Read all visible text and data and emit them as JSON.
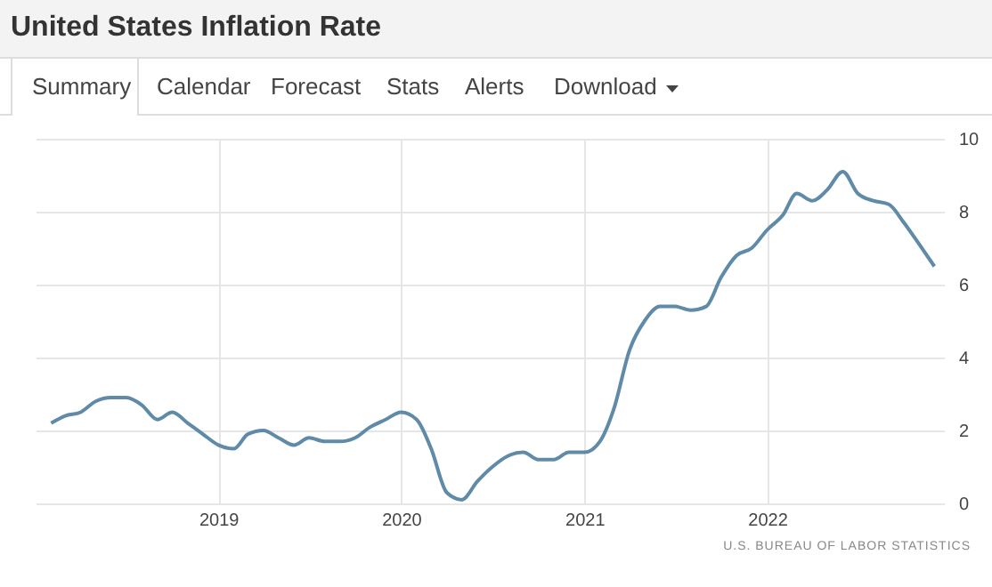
{
  "chart_data": {
    "type": "line",
    "title": "United States Inflation Rate",
    "annotations": [
      "Summary",
      "Calendar",
      "Forecast",
      "Stats",
      "Alerts",
      "Download",
      "U.S. BUREAU OF LABOR STATISTICS"
    ],
    "x": [
      "2018-02",
      "2018-03",
      "2018-04",
      "2018-05",
      "2018-06",
      "2018-07",
      "2018-08",
      "2018-09",
      "2018-10",
      "2018-11",
      "2018-12",
      "2019-01",
      "2019-02",
      "2019-03",
      "2019-04",
      "2019-05",
      "2019-06",
      "2019-07",
      "2019-08",
      "2019-09",
      "2019-10",
      "2019-11",
      "2019-12",
      "2020-01",
      "2020-02",
      "2020-03",
      "2020-04",
      "2020-05",
      "2020-06",
      "2020-07",
      "2020-08",
      "2020-09",
      "2020-10",
      "2020-11",
      "2020-12",
      "2021-01",
      "2021-02",
      "2021-03",
      "2021-04",
      "2021-05",
      "2021-06",
      "2021-07",
      "2021-08",
      "2021-09",
      "2021-10",
      "2021-11",
      "2021-12",
      "2022-01",
      "2022-02",
      "2022-03",
      "2022-04",
      "2022-05",
      "2022-06",
      "2022-07",
      "2022-08",
      "2022-09",
      "2022-10",
      "2022-11",
      "2022-12"
    ],
    "values": [
      2.2,
      2.4,
      2.5,
      2.8,
      2.9,
      2.9,
      2.7,
      2.3,
      2.5,
      2.2,
      1.9,
      1.6,
      1.5,
      1.9,
      2.0,
      1.8,
      1.6,
      1.8,
      1.7,
      1.7,
      1.8,
      2.1,
      2.3,
      2.5,
      2.3,
      1.5,
      0.3,
      0.1,
      0.6,
      1.0,
      1.3,
      1.4,
      1.2,
      1.2,
      1.4,
      1.4,
      1.7,
      2.6,
      4.2,
      5.0,
      5.4,
      5.4,
      5.3,
      5.4,
      6.2,
      6.8,
      7.0,
      7.5,
      7.9,
      8.5,
      8.3,
      8.6,
      9.1,
      8.5,
      8.3,
      8.2,
      7.7,
      7.1,
      6.5
    ],
    "color": "#5f8aa8",
    "xlim": [
      "2018-01-01",
      "2022-12-20"
    ],
    "xticks": [
      {
        "value": "2019-01-01",
        "label": "2019"
      },
      {
        "value": "2020-01-01",
        "label": "2020"
      },
      {
        "value": "2021-01-01",
        "label": "2021"
      },
      {
        "value": "2022-01-01",
        "label": "2022"
      }
    ],
    "ylim": [
      0,
      10
    ],
    "yticks": [
      0,
      2,
      4,
      6,
      8,
      10
    ],
    "grid": true
  }
}
